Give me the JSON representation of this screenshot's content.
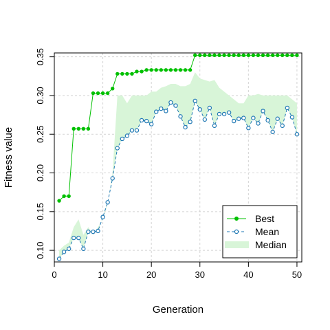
{
  "chart_data": {
    "type": "line",
    "title": "",
    "xlabel": "Generation",
    "ylabel": "Fitness value",
    "xlim": [
      0,
      51
    ],
    "ylim": [
      0.085,
      0.355
    ],
    "x_ticks": [
      0,
      10,
      20,
      30,
      40,
      50
    ],
    "y_ticks": [
      0.1,
      0.15,
      0.2,
      0.25,
      0.3,
      0.35
    ],
    "grid": true,
    "legend_position": "bottom-right",
    "x": [
      1,
      2,
      3,
      4,
      5,
      6,
      7,
      8,
      9,
      10,
      11,
      12,
      13,
      14,
      15,
      16,
      17,
      18,
      19,
      20,
      21,
      22,
      23,
      24,
      25,
      26,
      27,
      28,
      29,
      30,
      31,
      32,
      33,
      34,
      35,
      36,
      37,
      38,
      39,
      40,
      41,
      42,
      43,
      44,
      45,
      46,
      47,
      48,
      49,
      50
    ],
    "series": [
      {
        "name": "Best",
        "color": "#00c000",
        "style": "solid",
        "marker": "filled-circle",
        "values": [
          0.164,
          0.17,
          0.17,
          0.257,
          0.257,
          0.257,
          0.257,
          0.303,
          0.303,
          0.303,
          0.303,
          0.309,
          0.328,
          0.328,
          0.328,
          0.328,
          0.331,
          0.331,
          0.333,
          0.333,
          0.333,
          0.333,
          0.333,
          0.333,
          0.333,
          0.333,
          0.333,
          0.333,
          0.352,
          0.352,
          0.352,
          0.352,
          0.352,
          0.352,
          0.352,
          0.352,
          0.352,
          0.352,
          0.352,
          0.352,
          0.352,
          0.352,
          0.352,
          0.352,
          0.352,
          0.352,
          0.352,
          0.352,
          0.352,
          0.352
        ]
      },
      {
        "name": "Mean",
        "color": "#1f78b4",
        "style": "dashed",
        "marker": "open-circle",
        "values": [
          0.089,
          0.098,
          0.102,
          0.116,
          0.116,
          0.102,
          0.124,
          0.124,
          0.125,
          0.143,
          0.162,
          0.193,
          0.232,
          0.244,
          0.248,
          0.255,
          0.255,
          0.268,
          0.267,
          0.263,
          0.279,
          0.283,
          0.28,
          0.291,
          0.287,
          0.273,
          0.259,
          0.266,
          0.293,
          0.282,
          0.269,
          0.284,
          0.261,
          0.276,
          0.276,
          0.278,
          0.267,
          0.27,
          0.271,
          0.258,
          0.271,
          0.264,
          0.28,
          0.268,
          0.253,
          0.27,
          0.261,
          0.284,
          0.272,
          0.25
        ]
      },
      {
        "name": "Median",
        "color": "#d8f5d8",
        "style": "area",
        "lower": [
          0.089,
          0.098,
          0.102,
          0.116,
          0.116,
          0.102,
          0.124,
          0.124,
          0.125,
          0.143,
          0.162,
          0.193,
          0.232,
          0.244,
          0.248,
          0.255,
          0.255,
          0.268,
          0.267,
          0.263,
          0.279,
          0.283,
          0.28,
          0.291,
          0.287,
          0.273,
          0.259,
          0.266,
          0.293,
          0.282,
          0.269,
          0.284,
          0.261,
          0.276,
          0.276,
          0.278,
          0.267,
          0.27,
          0.271,
          0.258,
          0.271,
          0.264,
          0.28,
          0.268,
          0.253,
          0.27,
          0.261,
          0.284,
          0.272,
          0.25
        ],
        "values": [
          0.1,
          0.106,
          0.11,
          0.13,
          0.14,
          0.12,
          0.13,
          0.12,
          0.13,
          0.14,
          0.16,
          0.2,
          0.3,
          0.3,
          0.29,
          0.3,
          0.3,
          0.3,
          0.3,
          0.305,
          0.305,
          0.31,
          0.312,
          0.315,
          0.315,
          0.312,
          0.312,
          0.315,
          0.33,
          0.322,
          0.32,
          0.318,
          0.32,
          0.31,
          0.305,
          0.3,
          0.295,
          0.29,
          0.29,
          0.3,
          0.3,
          0.302,
          0.3,
          0.3,
          0.3,
          0.3,
          0.3,
          0.3,
          0.295,
          0.29
        ]
      }
    ]
  }
}
